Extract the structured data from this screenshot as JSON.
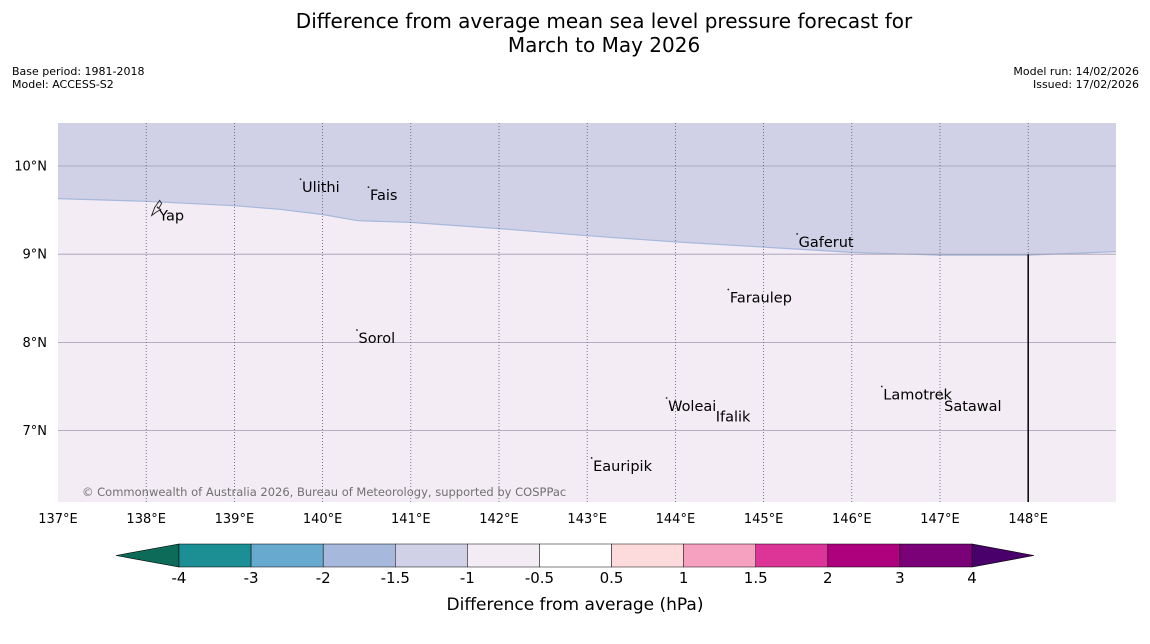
{
  "title_line1": "Difference from average mean sea level pressure forecast for",
  "title_line2": "March to May 2026",
  "meta": {
    "base_period": "Base period: 1981-2018",
    "model": "Model: ACCESS-S2",
    "model_run": "Model run: 14/02/2026",
    "issued": "Issued: 17/02/2026"
  },
  "copyright": "© Commonwealth of Australia 2026, Bureau of Meteorology, supported by COSPPac",
  "map": {
    "lon_range": [
      137,
      149
    ],
    "lat_range": [
      6.2,
      10.5
    ],
    "lon_ticks": [
      137,
      138,
      139,
      140,
      141,
      142,
      143,
      144,
      145,
      146,
      147,
      148
    ],
    "lon_tick_labels": [
      "137°E",
      "138°E",
      "139°E",
      "140°E",
      "141°E",
      "142°E",
      "143°E",
      "144°E",
      "145°E",
      "146°E",
      "147°E",
      "148°E"
    ],
    "lat_ticks": [
      10,
      9,
      8,
      7
    ],
    "lat_tick_labels": [
      "10°N",
      "9°N",
      "8°N",
      "7°N"
    ],
    "boundary_line": [
      [
        137.0,
        9.63
      ],
      [
        138.0,
        9.6
      ],
      [
        139.0,
        9.55
      ],
      [
        139.5,
        9.51
      ],
      [
        140.0,
        9.45
      ],
      [
        140.4,
        9.38
      ],
      [
        141.0,
        9.36
      ],
      [
        142.0,
        9.29
      ],
      [
        143.0,
        9.21
      ],
      [
        144.0,
        9.14
      ],
      [
        145.0,
        9.08
      ],
      [
        146.0,
        9.02
      ],
      [
        147.0,
        8.99
      ],
      [
        148.0,
        8.99
      ],
      [
        149.0,
        9.03
      ]
    ],
    "north_fill_color": "#d0d1e6",
    "south_fill_color": "#f4ecf5",
    "meridian_line_lon": 148,
    "meridian_line_lat_range": [
      6.2,
      9.0
    ],
    "places": [
      {
        "name": "Ulithi",
        "lon": 139.75,
        "lat": 9.85
      },
      {
        "name": "Fais",
        "lon": 140.52,
        "lat": 9.76
      },
      {
        "name": "Yap",
        "lon": 138.13,
        "lat": 9.53
      },
      {
        "name": "Gaferut",
        "lon": 145.38,
        "lat": 9.23
      },
      {
        "name": "Faraulep",
        "lon": 144.6,
        "lat": 8.6
      },
      {
        "name": "Sorol",
        "lon": 140.39,
        "lat": 8.14
      },
      {
        "name": "Lamotrek",
        "lon": 146.34,
        "lat": 7.5
      },
      {
        "name": "Woleai",
        "lon": 143.9,
        "lat": 7.37
      },
      {
        "name": "Ifalik",
        "lon": 144.44,
        "lat": 7.25
      },
      {
        "name": "Satawal",
        "lon": 147.03,
        "lat": 7.37
      },
      {
        "name": "Eauripik",
        "lon": 143.05,
        "lat": 6.69
      }
    ]
  },
  "legend": {
    "title": "Difference from average (hPa)",
    "ticks": [
      "-4",
      "-3",
      "-2",
      "-1.5",
      "-1",
      "-0.5",
      "0.5",
      "1",
      "1.5",
      "2",
      "3",
      "4"
    ],
    "colors": [
      "#1b8f94",
      "#67a9cf",
      "#a6b8dc",
      "#d0d1e6",
      "#f4ecf5",
      "#ffffff",
      "#fddbdc",
      "#f7a1c1",
      "#dd3497",
      "#ae017e",
      "#7a0177"
    ],
    "under_color": "#0d6b5a",
    "over_color": "#49006a"
  }
}
